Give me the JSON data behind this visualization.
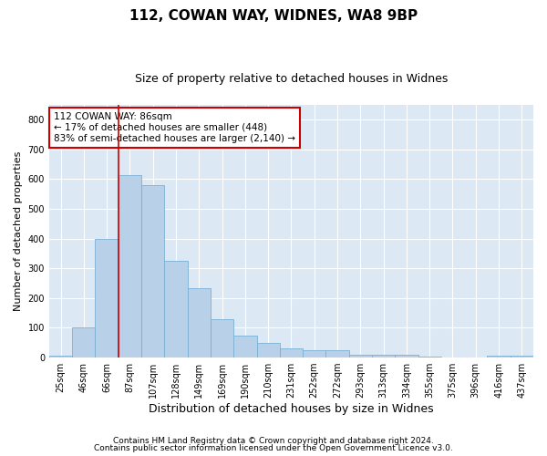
{
  "title1": "112, COWAN WAY, WIDNES, WA8 9BP",
  "title2": "Size of property relative to detached houses in Widnes",
  "xlabel": "Distribution of detached houses by size in Widnes",
  "ylabel": "Number of detached properties",
  "categories": [
    "25sqm",
    "46sqm",
    "66sqm",
    "87sqm",
    "107sqm",
    "128sqm",
    "149sqm",
    "169sqm",
    "190sqm",
    "210sqm",
    "231sqm",
    "252sqm",
    "272sqm",
    "293sqm",
    "313sqm",
    "334sqm",
    "355sqm",
    "375sqm",
    "396sqm",
    "416sqm",
    "437sqm"
  ],
  "values": [
    5,
    103,
    400,
    615,
    580,
    325,
    232,
    130,
    75,
    50,
    30,
    25,
    25,
    10,
    8,
    8,
    2,
    0,
    0,
    5,
    5
  ],
  "bar_color": "#b8d0e8",
  "bar_edge_color": "#7aafd4",
  "vline_x_idx": 3,
  "vline_color": "#cc0000",
  "annotation_text": "112 COWAN WAY: 86sqm\n← 17% of detached houses are smaller (448)\n83% of semi-detached houses are larger (2,140) →",
  "annotation_box_color": "#ffffff",
  "annotation_box_edge": "#cc0000",
  "ylim": [
    0,
    850
  ],
  "yticks": [
    0,
    100,
    200,
    300,
    400,
    500,
    600,
    700,
    800
  ],
  "footer1": "Contains HM Land Registry data © Crown copyright and database right 2024.",
  "footer2": "Contains public sector information licensed under the Open Government Licence v3.0.",
  "plot_bg_color": "#dce9f5",
  "title1_fontsize": 11,
  "title2_fontsize": 9,
  "xlabel_fontsize": 9,
  "ylabel_fontsize": 8,
  "tick_fontsize": 7,
  "footer_fontsize": 6.5,
  "annotation_fontsize": 7.5
}
